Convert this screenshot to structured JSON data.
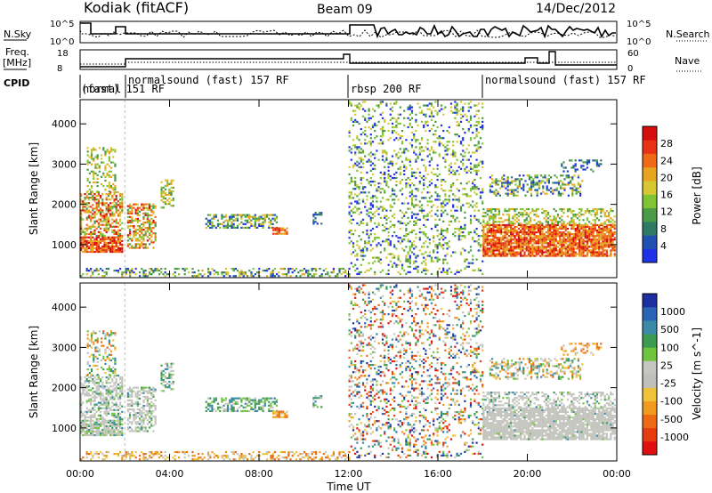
{
  "header": {
    "station": "Kodiak (fitACF)",
    "beam": "Beam 09",
    "date": "14/Dec/2012"
  },
  "summary_panels": {
    "nsky_label": "N.Sky",
    "nsky_ticks": [
      "10^5",
      "10^0"
    ],
    "nsearch_label": "N.Search",
    "nsearch_ticks": [
      "10^5",
      "10^0"
    ],
    "freq_label": "Freq.",
    "freq_unit": "[MHz]",
    "freq_ticks": [
      "18",
      "8"
    ],
    "nave_label": "Nave",
    "nave_ticks": [
      "60",
      "0"
    ],
    "cpid_label": "CPID"
  },
  "cpid_segments": [
    {
      "label": "normal",
      "start_h": 0.0,
      "row": 1
    },
    {
      "label": "(fast) 151 RF",
      "start_h": 0.0,
      "row": 1,
      "offset_label": true
    },
    {
      "label": "normalsound (fast) 157 RF",
      "start_h": 2.0,
      "row": 0
    },
    {
      "label": "rbsp 200 RF",
      "start_h": 12.0,
      "row": 0
    },
    {
      "label": "normalsound (fast) 157 RF",
      "start_h": 18.0,
      "row": 0
    }
  ],
  "chart_data": [
    {
      "type": "heatmap",
      "name": "power",
      "title": "",
      "xlabel": "Time UT",
      "ylabel": "Slant Range [km]",
      "x_range_h": [
        0,
        24
      ],
      "x_ticks": [
        "00:00",
        "04:00",
        "08:00",
        "12:00",
        "16:00",
        "20:00",
        "00:00"
      ],
      "x_tick_hours": [
        0,
        4,
        8,
        12,
        16,
        20,
        24
      ],
      "ylim": [
        180,
        4600
      ],
      "y_ticks": [
        1000,
        2000,
        3000,
        4000
      ],
      "colorbar": {
        "label": "Power [dB]",
        "tick_labels": [
          "4",
          "8",
          "12",
          "16",
          "20",
          "24",
          "28"
        ],
        "colors": [
          "#1f32e6",
          "#2050b0",
          "#2e7a64",
          "#4a9a46",
          "#7fc433",
          "#d6c832",
          "#e8a41e",
          "#ef6a16",
          "#e83214",
          "#d60c0c"
        ]
      }
    },
    {
      "type": "heatmap",
      "name": "velocity",
      "title": "",
      "xlabel": "Time UT",
      "ylabel": "Slant Range [km]",
      "x_range_h": [
        0,
        24
      ],
      "x_ticks": [
        "00:00",
        "04:00",
        "08:00",
        "12:00",
        "16:00",
        "20:00",
        "00:00"
      ],
      "x_tick_hours": [
        0,
        4,
        8,
        12,
        16,
        20,
        24
      ],
      "ylim": [
        180,
        4600
      ],
      "y_ticks": [
        1000,
        2000,
        3000,
        4000
      ],
      "colorbar": {
        "label": "Velocity [m s^-1]",
        "tick_labels": [
          "1000",
          "500",
          "100",
          "25",
          "-25",
          "-100",
          "-500",
          "-1000"
        ],
        "colors": [
          "#1c2ea0",
          "#2a64b4",
          "#3a8aa8",
          "#3c9a52",
          "#6fc43e",
          "#c6c6c0",
          "#c0c0bb",
          "#f0c23a",
          "#f09a20",
          "#ec6a14",
          "#e63c10",
          "#e01010"
        ]
      }
    }
  ]
}
